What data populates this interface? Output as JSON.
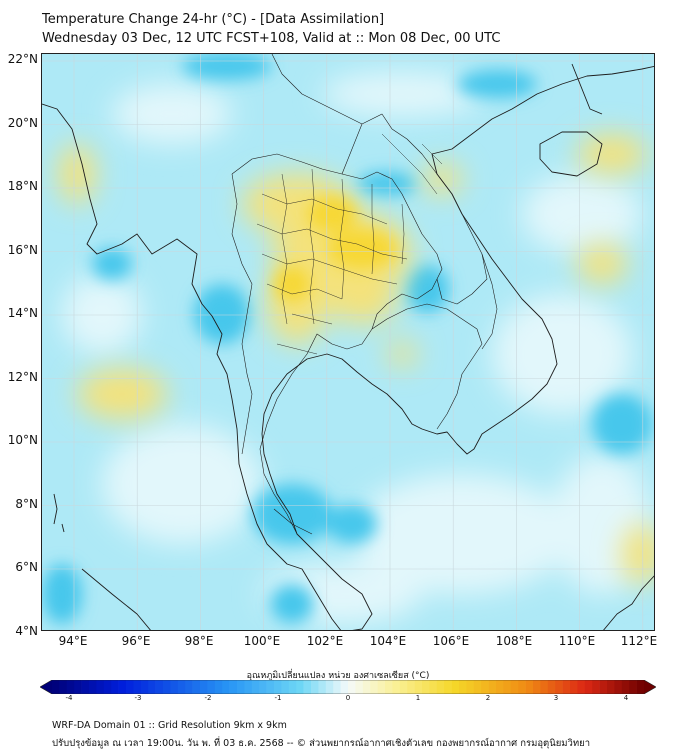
{
  "header": {
    "title_line1": "Temperature Change 24-hr (°C) - [Data Assimilation]",
    "title_line2": "Wednesday 03 Dec, 12 UTC FCST+108, Valid at :: Mon 08 Dec, 00 UTC"
  },
  "map": {
    "lat_labels": [
      "22°N",
      "20°N",
      "18°N",
      "16°N",
      "14°N",
      "12°N",
      "10°N",
      "8°N",
      "6°N",
      "4°N"
    ],
    "lon_labels": [
      "94°E",
      "96°E",
      "98°E",
      "100°E",
      "102°E",
      "104°E",
      "106°E",
      "108°E",
      "110°E",
      "112°E"
    ],
    "colors": {
      "background_cyan": "#aee9f6",
      "light": "#dff6fb",
      "mid_blue": "#41c6ec",
      "warm_yellow": "#f6e36a",
      "coast": "#1e1e1e"
    }
  },
  "colorbar": {
    "label": "อุณหภูมิเปลี่ยนแปลง หน่วย องศาเซลเซียส (°C)",
    "ticks": [
      "-4",
      "-3",
      "-2",
      "-1",
      "0",
      "1",
      "2",
      "3",
      "4"
    ],
    "range": [
      -4,
      4
    ]
  },
  "footer": {
    "line1": "WRF-DA Domain 01 :: Grid Resolution 9km x 9km",
    "line2": "ปรับปรุงข้อมูล ณ เวลา 19:00น. วัน พ. ที่ 03 ธ.ค. 2568 -- © ส่วนพยากรณ์อากาศเชิงตัวเลข กองพยากรณ์อากาศ กรมอุตุนิยมวิทยา"
  }
}
